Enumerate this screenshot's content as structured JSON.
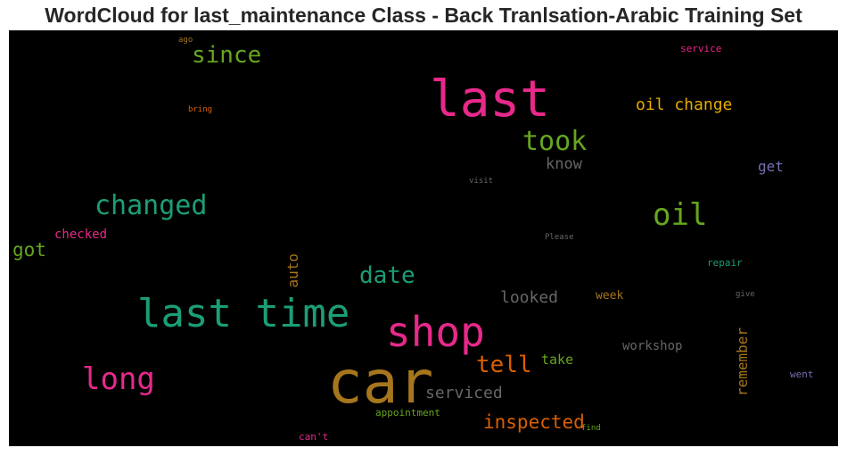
{
  "chart_data": {
    "type": "wordcloud",
    "title": "WordCloud for last_maintenance Class - Back Tranlsation-Arabic Training Set",
    "words": [
      {
        "text": "car",
        "weight": 1.0,
        "color": "#a6761d"
      },
      {
        "text": "last",
        "weight": 0.85,
        "color": "#e7298a"
      },
      {
        "text": "shop",
        "weight": 0.75,
        "color": "#e7298a"
      },
      {
        "text": "last time",
        "weight": 0.72,
        "color": "#1b9e77"
      },
      {
        "text": "long",
        "weight": 0.5,
        "color": "#e7298a"
      },
      {
        "text": "oil",
        "weight": 0.5,
        "color": "#66a61e"
      },
      {
        "text": "changed",
        "weight": 0.45,
        "color": "#1b9e77"
      },
      {
        "text": "took",
        "weight": 0.45,
        "color": "#66a61e"
      },
      {
        "text": "since",
        "weight": 0.38,
        "color": "#66a61e"
      },
      {
        "text": "date",
        "weight": 0.38,
        "color": "#1b9e77"
      },
      {
        "text": "tell",
        "weight": 0.35,
        "color": "#d95f02"
      },
      {
        "text": "inspected",
        "weight": 0.28,
        "color": "#d95f02"
      },
      {
        "text": "got",
        "weight": 0.28,
        "color": "#66a61e"
      },
      {
        "text": "oil change",
        "weight": 0.25,
        "color": "#e6ab02"
      },
      {
        "text": "serviced",
        "weight": 0.24,
        "color": "#666666"
      },
      {
        "text": "looked",
        "weight": 0.24,
        "color": "#666666"
      },
      {
        "text": "know",
        "weight": 0.22,
        "color": "#666666"
      },
      {
        "text": "remember",
        "weight": 0.2,
        "color": "#a6761d"
      },
      {
        "text": "auto",
        "weight": 0.2,
        "color": "#a6761d"
      },
      {
        "text": "get",
        "weight": 0.2,
        "color": "#7570b3"
      },
      {
        "text": "take",
        "weight": 0.18,
        "color": "#66a61e"
      },
      {
        "text": "workshop",
        "weight": 0.17,
        "color": "#666666"
      },
      {
        "text": "checked",
        "weight": 0.16,
        "color": "#e7298a"
      },
      {
        "text": "week",
        "weight": 0.16,
        "color": "#a6761d"
      },
      {
        "text": "repair",
        "weight": 0.13,
        "color": "#1b9e77"
      },
      {
        "text": "went",
        "weight": 0.13,
        "color": "#7570b3"
      },
      {
        "text": "service",
        "weight": 0.13,
        "color": "#e7298a"
      },
      {
        "text": "appointment",
        "weight": 0.13,
        "color": "#66a61e"
      },
      {
        "text": "can't",
        "weight": 0.13,
        "color": "#e7298a"
      },
      {
        "text": "bring",
        "weight": 0.1,
        "color": "#d95f02"
      },
      {
        "text": "visit",
        "weight": 0.09,
        "color": "#666666"
      },
      {
        "text": "Please",
        "weight": 0.09,
        "color": "#666666"
      },
      {
        "text": "give",
        "weight": 0.09,
        "color": "#666666"
      },
      {
        "text": "ago",
        "weight": 0.09,
        "color": "#a6761d"
      },
      {
        "text": "find",
        "weight": 0.08,
        "color": "#66a61e"
      }
    ]
  }
}
